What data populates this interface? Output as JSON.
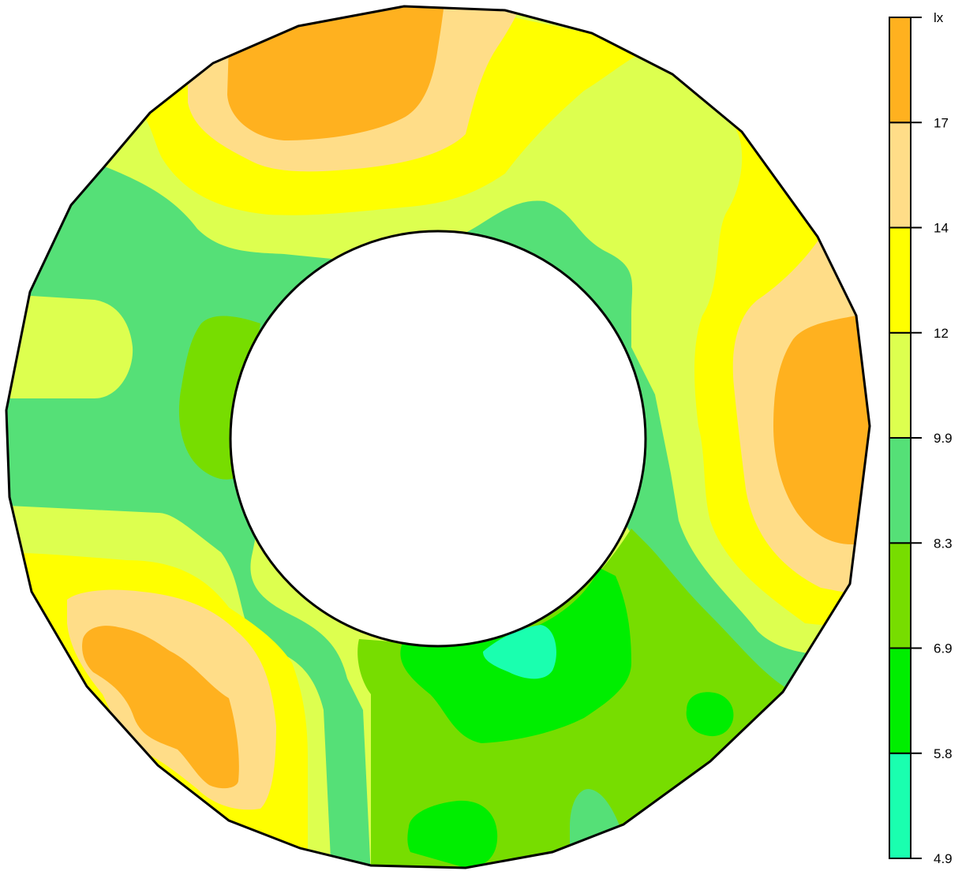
{
  "chart_data": {
    "type": "heatmap",
    "subtype": "filled-contour-annulus",
    "quantity_label": "lx",
    "legend": {
      "placement": "right",
      "levels": [
        4.9,
        5.8,
        6.9,
        8.3,
        9.9,
        12,
        14,
        17
      ],
      "tick_labels": [
        "4.9",
        "5.8",
        "6.9",
        "8.3",
        "9.9",
        "12",
        "14",
        "17"
      ],
      "bands": [
        {
          "from": 4.9,
          "to": 5.8,
          "color": "#1affaf"
        },
        {
          "from": 5.8,
          "to": 6.9,
          "color": "#00ee00"
        },
        {
          "from": 6.9,
          "to": 8.3,
          "color": "#77dd00"
        },
        {
          "from": 8.3,
          "to": 9.9,
          "color": "#55e077"
        },
        {
          "from": 9.9,
          "to": 12,
          "color": "#ddff4f"
        },
        {
          "from": 12,
          "to": 14,
          "color": "#ffff00"
        },
        {
          "from": 14,
          "to": 17,
          "color": "#ffdd88"
        },
        {
          "from": 17,
          "to": null,
          "color": "#ffb11f"
        }
      ]
    },
    "grid": false
  },
  "colors": {
    "c1": "#1affaf",
    "c2": "#00ee00",
    "c3": "#77dd00",
    "c4": "#55e077",
    "c5": "#ddff4f",
    "c6": "#ffff00",
    "c7": "#ffdd88",
    "c8": "#ffb11f",
    "outline": "#000000"
  }
}
